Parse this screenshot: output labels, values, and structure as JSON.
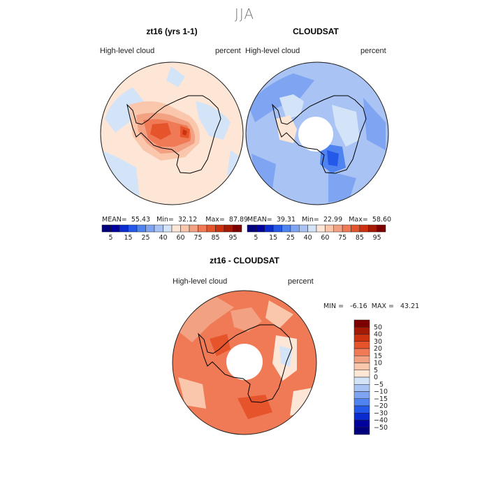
{
  "header": {
    "season": "JJA"
  },
  "panels": [
    {
      "title": "zt16 (yrs 1-1)",
      "field": "High-level cloud",
      "units": "percent",
      "stats": {
        "mean_label": "MEAN=",
        "mean": "55.43",
        "min_label": "Min=",
        "min": "32.12",
        "max_label": "Max=",
        "max": "87.89"
      }
    },
    {
      "title": "CLOUDSAT",
      "field": "High-level cloud",
      "units": "percent",
      "stats": {
        "mean_label": "MEAN=",
        "mean": "39.31",
        "min_label": "Min=",
        "min": "22.99",
        "max_label": "Max=",
        "max": "58.60"
      }
    }
  ],
  "diff": {
    "title": "zt16 - CLOUDSAT",
    "field": "High-level cloud",
    "units": "percent",
    "minmax": "MIN =   -6.16  MAX =   43.21"
  },
  "chart_data": [
    {
      "type": "heatmap",
      "title": "zt16 (yrs 1-1)",
      "projection": "south polar stereographic",
      "variable": "High-level cloud",
      "units": "percent",
      "levels": [
        5,
        10,
        15,
        20,
        25,
        30,
        40,
        50,
        60,
        70,
        75,
        80,
        85,
        90,
        95
      ],
      "tick_labels": [
        "5",
        "15",
        "25",
        "40",
        "60",
        "75",
        "85",
        "95"
      ],
      "mean": 55.43,
      "min": 32.12,
      "max": 87.89
    },
    {
      "type": "heatmap",
      "title": "CLOUDSAT",
      "projection": "south polar stereographic",
      "variable": "High-level cloud",
      "units": "percent",
      "levels": [
        5,
        10,
        15,
        20,
        25,
        30,
        40,
        50,
        60,
        70,
        75,
        80,
        85,
        90,
        95
      ],
      "tick_labels": [
        "5",
        "15",
        "25",
        "40",
        "60",
        "75",
        "85",
        "95"
      ],
      "mean": 39.31,
      "min": 22.99,
      "max": 58.6
    },
    {
      "type": "heatmap",
      "title": "zt16 - CLOUDSAT",
      "projection": "south polar stereographic",
      "variable": "High-level cloud",
      "units": "percent",
      "levels": [
        -50,
        -40,
        -30,
        -20,
        -15,
        -10,
        -5,
        0,
        5,
        10,
        15,
        20,
        30,
        40,
        50
      ],
      "tick_labels": [
        "50",
        "40",
        "30",
        "20",
        "15",
        "10",
        "5",
        "0",
        "−5",
        "−10",
        "−15",
        "−20",
        "−30",
        "−40",
        "−50"
      ],
      "min": -6.16,
      "max": 43.21
    }
  ],
  "colors": {
    "abs_scale": [
      "#00007f",
      "#00009e",
      "#0a2bd0",
      "#2458e8",
      "#4f83f0",
      "#7ea4f2",
      "#a9c4f4",
      "#d3e3f8",
      "#fde6d6",
      "#fac6ac",
      "#f3a183",
      "#ef7a55",
      "#e6542c",
      "#cd3210",
      "#a51a05",
      "#7c0000"
    ],
    "diff_scale": [
      "#7c0000",
      "#a51a05",
      "#cd3210",
      "#e6542c",
      "#ef7a55",
      "#f3a183",
      "#fac6ac",
      "#fde6d6",
      "#d3e3f8",
      "#a9c4f4",
      "#7ea4f2",
      "#4f83f0",
      "#2458e8",
      "#0a2bd0",
      "#00009e",
      "#00007f"
    ]
  }
}
